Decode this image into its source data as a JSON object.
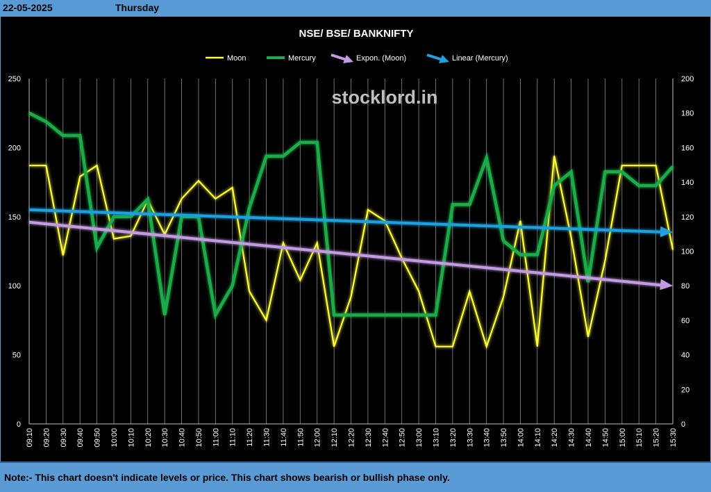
{
  "header": {
    "date": "22-05-2025",
    "day": "Thursday"
  },
  "note": "Note:- This chart doesn't indicate levels or price. This chart shows bearish or bullish phase only.",
  "watermark": "stocklord.in",
  "chart_data": {
    "type": "line",
    "title": "NSE/ BSE/ BANKNIFTY",
    "background": "#000000",
    "grid": "vertical",
    "legend": "top",
    "categories": [
      "09:10",
      "09:20",
      "09:30",
      "09:40",
      "09:50",
      "10:00",
      "10:10",
      "10:20",
      "10:30",
      "10:40",
      "10:50",
      "11:00",
      "11:10",
      "11:20",
      "11:30",
      "11:40",
      "11:50",
      "12:00",
      "12:10",
      "12:20",
      "12:30",
      "12:40",
      "12:50",
      "13:00",
      "13:10",
      "13:20",
      "13:30",
      "13:40",
      "13:50",
      "14:00",
      "14:10",
      "14:20",
      "14:30",
      "14:40",
      "14:50",
      "15:00",
      "15:10",
      "15:20",
      "15:30"
    ],
    "y_left": {
      "min": 0,
      "max": 250,
      "ticks": [
        0,
        50,
        100,
        150,
        200,
        250
      ]
    },
    "y_right": {
      "min": 0,
      "max": 200,
      "ticks": [
        0,
        20,
        40,
        60,
        80,
        100,
        120,
        140,
        160,
        180,
        200
      ]
    },
    "series": [
      {
        "name": "Moon",
        "axis": "left",
        "color": "#ffff33",
        "values": [
          187,
          187,
          122,
          179,
          187,
          134,
          136,
          162,
          137,
          163,
          176,
          163,
          171,
          96,
          75,
          131,
          104,
          131,
          56,
          92,
          155,
          147,
          120,
          96,
          56,
          56,
          96,
          56,
          92,
          147,
          56,
          194,
          135,
          63,
          118,
          187,
          187,
          187,
          126
        ]
      },
      {
        "name": "Mercury",
        "axis": "right",
        "color": "#1aab4a",
        "values": [
          180,
          175,
          167,
          167,
          102,
          120,
          120,
          130,
          63,
          120,
          120,
          63,
          80,
          125,
          155,
          155,
          163,
          163,
          63,
          63,
          63,
          63,
          63,
          63,
          63,
          127,
          127,
          154,
          106,
          98,
          98,
          138,
          146,
          82,
          146,
          146,
          138,
          138,
          149
        ]
      }
    ],
    "trendlines": [
      {
        "name": "Expon. (Moon)",
        "axis": "left",
        "color": "#c39be3",
        "start": 146,
        "end": 100
      },
      {
        "name": "Linear (Mercury)",
        "axis": "right",
        "color": "#1fa0e0",
        "start": 124,
        "end": 111
      }
    ]
  }
}
